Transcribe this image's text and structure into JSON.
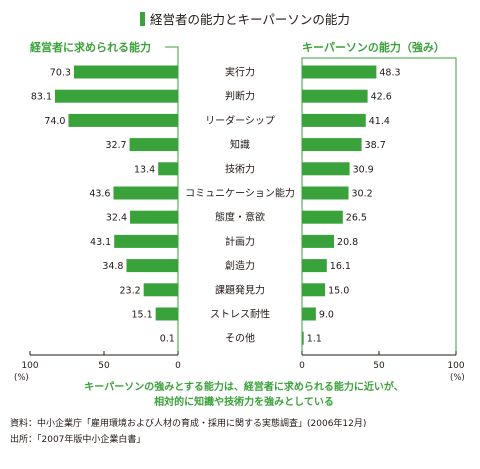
{
  "chart_data": {
    "type": "bar",
    "title": "経営者の能力とキーパーソンの能力",
    "categories": [
      "実行力",
      "判断力",
      "リーダーシップ",
      "知識",
      "技術力",
      "コミュニケーション能力",
      "態度・意欲",
      "計画力",
      "創造力",
      "課題発見力",
      "ストレス耐性",
      "その他"
    ],
    "series": [
      {
        "name": "経営者に求められる能力",
        "values": [
          70.3,
          83.1,
          74.0,
          32.7,
          13.4,
          43.6,
          32.4,
          43.1,
          34.8,
          23.2,
          15.1,
          0.1
        ]
      },
      {
        "name": "キーパーソンの能力（強み）",
        "values": [
          48.3,
          42.6,
          41.4,
          38.7,
          30.9,
          30.2,
          26.5,
          20.8,
          16.1,
          15.0,
          9.0,
          1.1
        ]
      }
    ],
    "left_value_labels": [
      "70.3",
      "83.1",
      "74.0",
      "32.7",
      "13.4",
      "43.6",
      "32.4",
      "43.1",
      "34.8",
      "23.2",
      "15.1",
      "0.1"
    ],
    "right_value_labels": [
      "48.3",
      "42.6",
      "41.4",
      "38.7",
      "30.9",
      "30.2",
      "26.5",
      "20.8",
      "16.1",
      "15.0",
      "9.0",
      "1.1"
    ],
    "left_ticks": [
      "100",
      "50",
      "0"
    ],
    "right_ticks": [
      "0",
      "50",
      "100"
    ],
    "unit": "(%)",
    "xlim": [
      0,
      100
    ],
    "color": "#3aa23a",
    "caption_lines": [
      "キーパーソンの強みとする能力は、経営者に求められる能力に近いが、",
      "相対的に知識や技術力を強みとしている"
    ],
    "source_lines": [
      "資料：中小企業庁「雇用環境および人材の育成・採用に関する実態調査」(2006年12月)",
      "出所：「2007年版中小企業白書」"
    ]
  }
}
